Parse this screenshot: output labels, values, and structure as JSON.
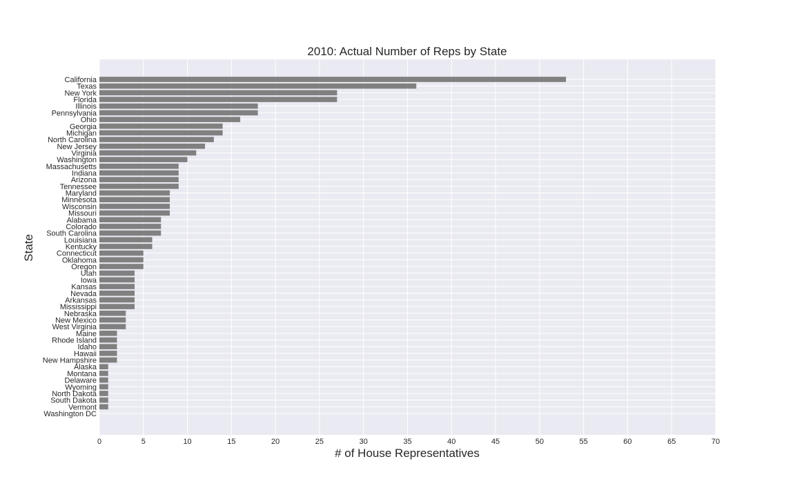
{
  "chart_data": {
    "type": "bar",
    "orientation": "horizontal",
    "title": "2010: Actual Number of Reps by State",
    "xlabel": "# of House Representatives",
    "ylabel": "State",
    "xlim": [
      0,
      70
    ],
    "xticks": [
      0,
      5,
      10,
      15,
      20,
      25,
      30,
      35,
      40,
      45,
      50,
      55,
      60,
      65,
      70
    ],
    "grid": true,
    "colors": {
      "bar": "#808080",
      "plot_background": "#eaeaf2",
      "grid": "#ffffff",
      "text": "#262626"
    },
    "categories": [
      "California",
      "Texas",
      "New York",
      "Florida",
      "Illinois",
      "Pennsylvania",
      "Ohio",
      "Georgia",
      "Michigan",
      "North Carolina",
      "New Jersey",
      "Virginia",
      "Washington",
      "Massachusetts",
      "Indiana",
      "Arizona",
      "Tennessee",
      "Maryland",
      "Minnesota",
      "Wisconsin",
      "Missouri",
      "Alabama",
      "Colorado",
      "South Carolina",
      "Louisiana",
      "Kentucky",
      "Connecticut",
      "Oklahoma",
      "Oregon",
      "Utah",
      "Iowa",
      "Kansas",
      "Nevada",
      "Arkansas",
      "Mississippi",
      "Nebraska",
      "New Mexico",
      "West Virginia",
      "Maine",
      "Rhode Island",
      "Idaho",
      "Hawaii",
      "New Hampshire",
      "Alaska",
      "Montana",
      "Delaware",
      "Wyoming",
      "North Dakota",
      "South Dakota",
      "Vermont",
      "Washington DC"
    ],
    "values": [
      53,
      36,
      27,
      27,
      18,
      18,
      16,
      14,
      14,
      13,
      12,
      11,
      10,
      9,
      9,
      9,
      9,
      8,
      8,
      8,
      8,
      7,
      7,
      7,
      6,
      6,
      5,
      5,
      5,
      4,
      4,
      4,
      4,
      4,
      4,
      3,
      3,
      3,
      2,
      2,
      2,
      2,
      2,
      1,
      1,
      1,
      1,
      1,
      1,
      1,
      0
    ]
  }
}
